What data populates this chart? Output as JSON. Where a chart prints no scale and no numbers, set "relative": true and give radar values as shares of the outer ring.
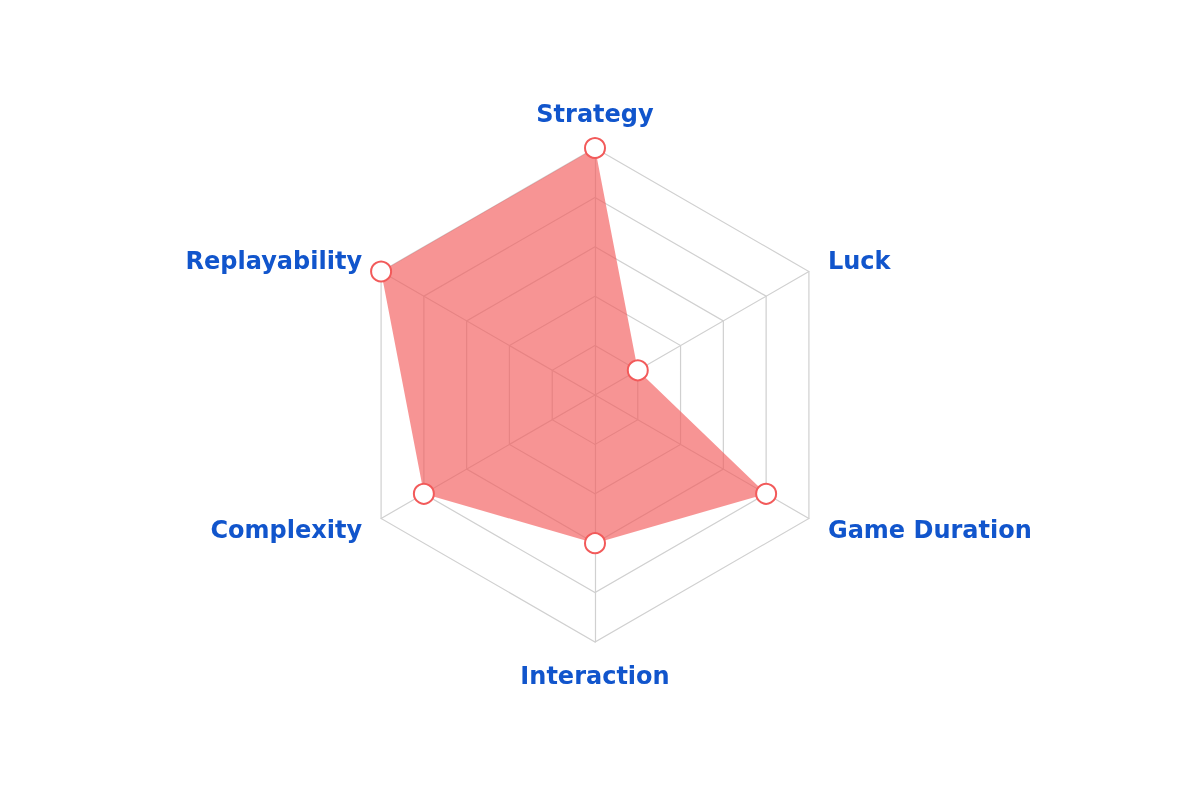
{
  "chart_data": {
    "type": "radar",
    "relative": true,
    "grid": true,
    "marker": "circle",
    "categories": [
      "Strategy",
      "Luck",
      "Game Duration",
      "Interaction",
      "Complexity",
      "Replayability"
    ],
    "series": [
      {
        "color": "#f25a5a",
        "values": [
          1.0,
          0.2,
          0.8,
          0.6,
          0.8,
          1.0
        ]
      }
    ]
  }
}
